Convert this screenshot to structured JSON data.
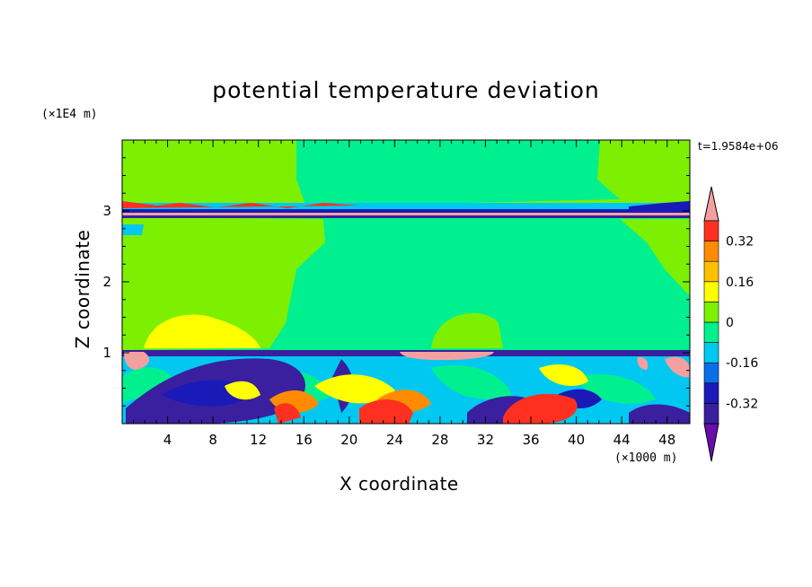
{
  "chart_data": {
    "type": "heatmap",
    "title": "potential temperature deviation",
    "xlabel": "X coordinate",
    "ylabel": "Z coordinate",
    "x_scale_label": "(×1000 m)",
    "y_scale_label": "(×1E4 m)",
    "time_label": "t=1.9584e+06",
    "xlim": [
      0,
      50
    ],
    "ylim": [
      0,
      4
    ],
    "x_ticks": [
      4,
      8,
      12,
      16,
      20,
      24,
      28,
      32,
      36,
      40,
      44,
      48
    ],
    "y_ticks": [
      1,
      2,
      3
    ],
    "colorbar": {
      "labeled_levels": [
        "0.32",
        "0.16",
        "0",
        "-0.16",
        "-0.32"
      ],
      "colors": [
        "#6a0dad",
        "#3a1f9e",
        "#1a1ab8",
        "#0a6ee8",
        "#00c8f0",
        "#00f090",
        "#7cf000",
        "#ffff00",
        "#ffc000",
        "#ff8c00",
        "#ff3020",
        "#f4a0a0"
      ],
      "extend": "both"
    },
    "description": "Upper layer near 0 (light green); horizontal inversion band near z=2.95; middle layer slightly negative (medium green); strong turbulent negative/positive eddies below z=1.05."
  }
}
